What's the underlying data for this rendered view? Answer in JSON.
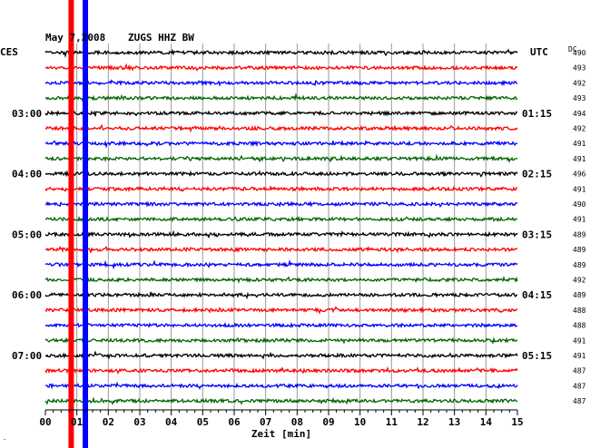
{
  "header": {
    "date_text": "May 7,2008",
    "station_text": "ZUGS HHZ BW",
    "left_timezone": "CES",
    "right_timezone": "UTC",
    "dc_label": "DC"
  },
  "footer": {
    "xlabel": "Zeit [min]",
    "corner_mark": "."
  },
  "chart_data": {
    "type": "line",
    "title": "May 7,2008   ZUGS HHZ BW",
    "xlabel": "Zeit [min]",
    "xlim": [
      0,
      15
    ],
    "x_ticks": [
      "00",
      "01",
      "02",
      "03",
      "04",
      "05",
      "06",
      "07",
      "08",
      "09",
      "10",
      "11",
      "12",
      "13",
      "14",
      "15"
    ],
    "trace_count": 24,
    "trace_colors": [
      "#000000",
      "#ff0000",
      "#0000ff",
      "#006400"
    ],
    "left_time_labels": [
      {
        "trace": 4,
        "text": "03:00"
      },
      {
        "trace": 8,
        "text": "04:00"
      },
      {
        "trace": 12,
        "text": "05:00"
      },
      {
        "trace": 16,
        "text": "06:00"
      },
      {
        "trace": 20,
        "text": "07:00"
      }
    ],
    "right_time_labels": [
      {
        "trace": 4,
        "text": "01:15"
      },
      {
        "trace": 8,
        "text": "02:15"
      },
      {
        "trace": 12,
        "text": "03:15"
      },
      {
        "trace": 16,
        "text": "04:15"
      },
      {
        "trace": 20,
        "text": "05:15"
      }
    ],
    "dc_values": [
      "490",
      "493",
      "492",
      "493",
      "494",
      "492",
      "491",
      "491",
      "496",
      "491",
      "490",
      "491",
      "489",
      "489",
      "489",
      "492",
      "489",
      "488",
      "488",
      "491",
      "491",
      "487",
      "487",
      "487"
    ],
    "event_markers": [
      {
        "minute": 0.82,
        "color": "#ff0000"
      },
      {
        "minute": 1.27,
        "color": "#0000ff"
      }
    ],
    "grid": true
  }
}
